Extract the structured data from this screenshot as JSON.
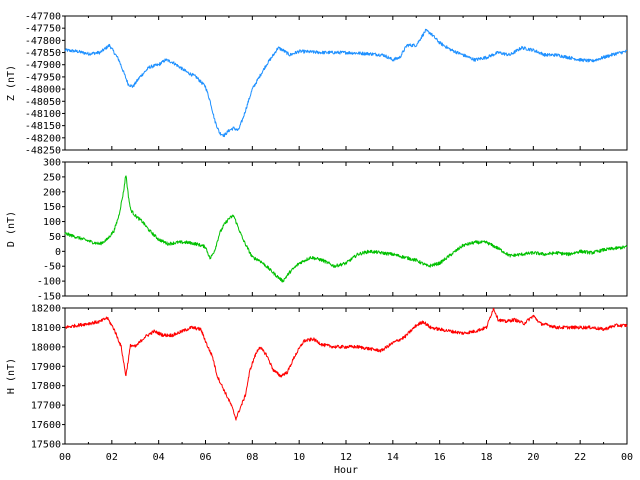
{
  "chart_data": [
    {
      "type": "line",
      "ylabel": "Z (nT)",
      "ylim": [
        -48250,
        -47700
      ],
      "yticks": [
        "-47700",
        "-47750",
        "-47800",
        "-47850",
        "-47900",
        "-47950",
        "-48000",
        "-48050",
        "-48100",
        "-48150",
        "-48200",
        "-48250"
      ],
      "xlim": [
        0,
        24
      ],
      "series": [
        {
          "color": "#1e90ff",
          "x": [
            0,
            0.5,
            1,
            1.5,
            1.9,
            2.1,
            2.3,
            2.5,
            2.7,
            2.9,
            3.2,
            3.6,
            4.0,
            4.3,
            4.6,
            4.9,
            5.2,
            5.6,
            6.0,
            6.2,
            6.4,
            6.6,
            6.8,
            7.0,
            7.2,
            7.4,
            7.6,
            7.8,
            8.0,
            8.3,
            8.6,
            8.9,
            9.1,
            9.3,
            9.6,
            10,
            11,
            12,
            13,
            13.6,
            14,
            14.3,
            14.6,
            15,
            15.4,
            15.6,
            16,
            16.5,
            17,
            17.5,
            18,
            18.5,
            19,
            19.5,
            20,
            20.5,
            21,
            21.5,
            22,
            22.5,
            23,
            23.5,
            24
          ],
          "y": [
            -47840,
            -47845,
            -47855,
            -47850,
            -47820,
            -47850,
            -47880,
            -47930,
            -47980,
            -47990,
            -47950,
            -47910,
            -47900,
            -47880,
            -47890,
            -47910,
            -47930,
            -47950,
            -47990,
            -48050,
            -48130,
            -48180,
            -48190,
            -48170,
            -48160,
            -48170,
            -48120,
            -48060,
            -48000,
            -47950,
            -47900,
            -47860,
            -47830,
            -47840,
            -47860,
            -47845,
            -47850,
            -47850,
            -47855,
            -47860,
            -47880,
            -47870,
            -47820,
            -47820,
            -47760,
            -47770,
            -47810,
            -47840,
            -47860,
            -47880,
            -47870,
            -47850,
            -47860,
            -47830,
            -47840,
            -47860,
            -47860,
            -47870,
            -47880,
            -47885,
            -47870,
            -47855,
            -47845
          ]
        }
      ]
    },
    {
      "type": "line",
      "ylabel": "D (nT)",
      "ylim": [
        -150,
        300
      ],
      "yticks": [
        "300",
        "250",
        "200",
        "150",
        "100",
        "50",
        "0",
        "-50",
        "-100",
        "-150"
      ],
      "xlim": [
        0,
        24
      ],
      "series": [
        {
          "color": "#00c000",
          "x": [
            0,
            0.4,
            0.8,
            1.2,
            1.5,
            1.8,
            2.1,
            2.3,
            2.5,
            2.6,
            2.7,
            2.8,
            3.0,
            3.3,
            3.6,
            4.0,
            4.4,
            4.8,
            5.2,
            5.6,
            6.0,
            6.2,
            6.4,
            6.6,
            6.8,
            7.0,
            7.2,
            7.4,
            7.6,
            7.8,
            8.0,
            8.3,
            8.6,
            9.0,
            9.3,
            9.6,
            10,
            10.5,
            11,
            11.5,
            12,
            12.5,
            13,
            13.5,
            14,
            14.5,
            15,
            15.5,
            16,
            16.5,
            17,
            17.5,
            18,
            18.5,
            19,
            19.5,
            20,
            20.5,
            21,
            21.5,
            22,
            22.5,
            23,
            23.5,
            24
          ],
          "y": [
            60,
            50,
            40,
            30,
            25,
            40,
            70,
            120,
            200,
            260,
            190,
            140,
            120,
            100,
            70,
            40,
            25,
            30,
            30,
            25,
            15,
            -25,
            5,
            60,
            90,
            110,
            120,
            80,
            40,
            10,
            -20,
            -30,
            -50,
            -80,
            -100,
            -70,
            -40,
            -20,
            -30,
            -50,
            -40,
            -10,
            0,
            -5,
            -10,
            -20,
            -30,
            -50,
            -40,
            -10,
            20,
            30,
            30,
            10,
            -15,
            -10,
            -5,
            -10,
            -5,
            -10,
            0,
            -5,
            5,
            10,
            15
          ]
        }
      ]
    },
    {
      "type": "line",
      "ylabel": "H (nT)",
      "ylim": [
        17500,
        18200
      ],
      "yticks": [
        "18200",
        "18100",
        "18000",
        "17900",
        "17800",
        "17700",
        "17600",
        "17500"
      ],
      "xlim": [
        0,
        24
      ],
      "xticks": [
        "00",
        "02",
        "04",
        "06",
        "08",
        "10",
        "12",
        "14",
        "16",
        "18",
        "20",
        "22",
        "00"
      ],
      "xlabel": "Hour",
      "series": [
        {
          "color": "#ff0000",
          "x": [
            0,
            0.5,
            1,
            1.5,
            1.8,
            2.1,
            2.4,
            2.6,
            2.8,
            3.0,
            3.4,
            3.8,
            4.2,
            4.6,
            5.0,
            5.4,
            5.8,
            6.1,
            6.3,
            6.5,
            6.7,
            6.9,
            7.1,
            7.3,
            7.5,
            7.7,
            7.9,
            8.1,
            8.3,
            8.6,
            8.9,
            9.2,
            9.5,
            9.8,
            10.2,
            10.6,
            11,
            11.5,
            12,
            12.5,
            13,
            13.5,
            14,
            14.5,
            15,
            15.3,
            15.6,
            16,
            16.5,
            17,
            17.5,
            18,
            18.3,
            18.5,
            18.8,
            19.2,
            19.6,
            20,
            20.3,
            20.7,
            21,
            21.5,
            22,
            22.5,
            23,
            23.5,
            24
          ],
          "y": [
            18100,
            18110,
            18120,
            18130,
            18150,
            18090,
            18000,
            17850,
            18010,
            18000,
            18050,
            18080,
            18060,
            18060,
            18080,
            18100,
            18090,
            18000,
            17950,
            17850,
            17800,
            17750,
            17700,
            17630,
            17690,
            17750,
            17880,
            17950,
            18000,
            17960,
            17880,
            17850,
            17870,
            17950,
            18030,
            18040,
            18010,
            18000,
            18000,
            18000,
            17990,
            17980,
            18020,
            18050,
            18110,
            18130,
            18100,
            18090,
            18080,
            18070,
            18080,
            18100,
            18200,
            18140,
            18130,
            18140,
            18120,
            18160,
            18120,
            18110,
            18100,
            18100,
            18100,
            18100,
            18090,
            18110,
            18110
          ]
        }
      ]
    }
  ]
}
